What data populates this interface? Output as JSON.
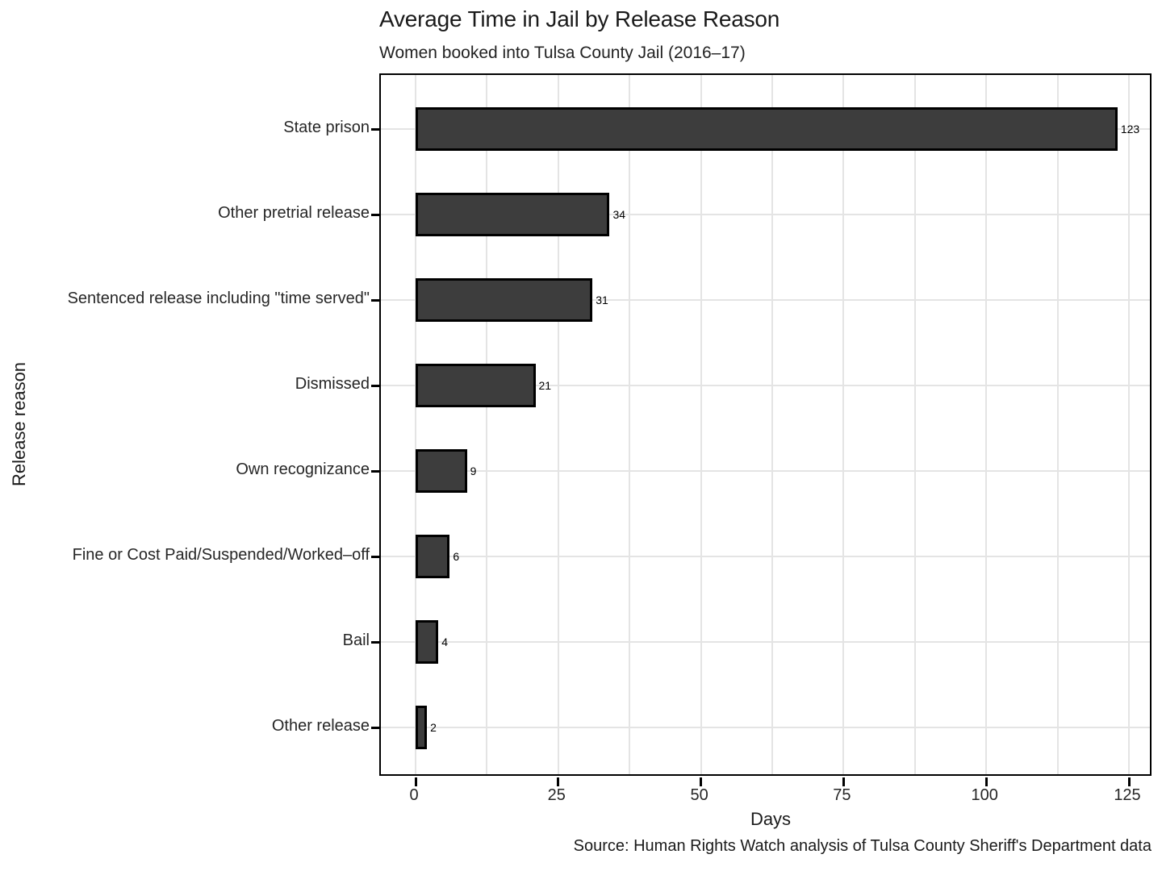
{
  "chart_data": {
    "type": "bar",
    "orientation": "horizontal",
    "title": "Average Time in Jail by Release Reason",
    "subtitle": "Women booked into Tulsa County Jail (2016–17)",
    "caption": "Source: Human Rights Watch analysis of Tulsa County Sheriff's Department data",
    "xlabel": "Days",
    "ylabel": "Release reason",
    "categories": [
      "State prison",
      "Other pretrial release",
      "Sentenced release including \"time served\"",
      "Dismissed",
      "Own recognizance",
      "Fine or Cost Paid/Suspended/Worked–off",
      "Bail",
      "Other release"
    ],
    "values": [
      123,
      34,
      31,
      21,
      9,
      6,
      4,
      2
    ],
    "xlim": [
      0,
      125
    ],
    "x_major_ticks": [
      0,
      25,
      50,
      75,
      100,
      125
    ],
    "x_gridline_step": 12.5,
    "grid": "on",
    "legend": "none",
    "colors": {
      "bar_fill": "#3d3d3d",
      "bar_stroke": "#000000",
      "grid": "#e4e4e4",
      "panel_border": "#000000"
    }
  }
}
